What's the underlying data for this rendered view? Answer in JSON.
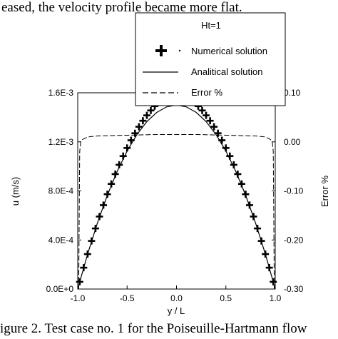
{
  "header_text": "eased, the velocity profile became more flat.",
  "caption_text": "igure 2.  Test case no. 1 for the Poiseuille-Hartmann flow",
  "chart_data": {
    "type": "line",
    "title": "",
    "xlabel": "y / L",
    "ylabel": "u (m/s)",
    "y2label": "Error %",
    "xlim": [
      -1.0,
      1.0
    ],
    "ylim": [
      0.0,
      0.0016
    ],
    "y2lim": [
      -0.3,
      0.1
    ],
    "x_ticks": [
      -1.0,
      -0.5,
      0.0,
      0.5,
      1.0
    ],
    "x_tick_labels": [
      "-1.0",
      "-0.5",
      "0.0",
      "0.5",
      "1.0"
    ],
    "y_ticks": [
      0.0,
      0.0004,
      0.0008,
      0.0012,
      0.0016
    ],
    "y_tick_labels": [
      "0.0E+0",
      "4.0E-4",
      "8.0E-4",
      "1.2E-3",
      "1.6E-3"
    ],
    "y2_ticks": [
      -0.3,
      -0.2,
      -0.1,
      0.0,
      0.1
    ],
    "y2_tick_labels": [
      "-0.30",
      "-0.20",
      "-0.10",
      "0.00",
      "0.10"
    ],
    "grid": false,
    "legend": {
      "placement": "top-center",
      "title": "Ht=1",
      "entries": [
        "Numerical solution",
        "Analitical solution",
        "Error %"
      ]
    },
    "series": [
      {
        "name": "Numerical solution",
        "marker": "plus",
        "color": "#000000",
        "x": [
          -0.98,
          -0.94,
          -0.9,
          -0.86,
          -0.82,
          -0.78,
          -0.74,
          -0.7,
          -0.66,
          -0.62,
          -0.58,
          -0.54,
          -0.5,
          -0.46,
          -0.42,
          -0.38,
          -0.34,
          -0.3,
          -0.26,
          -0.22,
          -0.18,
          -0.14,
          -0.1,
          -0.06,
          -0.02,
          0.02,
          0.06,
          0.1,
          0.14,
          0.18,
          0.22,
          0.26,
          0.3,
          0.34,
          0.38,
          0.42,
          0.46,
          0.5,
          0.54,
          0.58,
          0.62,
          0.66,
          0.7,
          0.74,
          0.78,
          0.82,
          0.86,
          0.9,
          0.94,
          0.98
        ],
        "values": [
          5.9e-05,
          0.000174,
          0.000285,
          0.000392,
          0.000494,
          0.000591,
          0.000684,
          0.000773,
          0.000857,
          0.000937,
          0.001013,
          0.001084,
          0.00115,
          0.001213,
          0.00127,
          0.001323,
          0.001372,
          0.001416,
          0.001456,
          0.001491,
          0.001521,
          0.001547,
          0.001569,
          0.001586,
          0.001598,
          0.001598,
          0.001586,
          0.001569,
          0.001547,
          0.001521,
          0.001491,
          0.001456,
          0.001416,
          0.001372,
          0.001323,
          0.00127,
          0.001213,
          0.00115,
          0.001084,
          0.001013,
          0.000937,
          0.000857,
          0.000773,
          0.000684,
          0.000591,
          0.000494,
          0.000392,
          0.000285,
          0.000174,
          5.9e-05
        ]
      },
      {
        "name": "Analitical solution",
        "style": "solid",
        "color": "#000000",
        "x": [
          -1.0,
          -0.9,
          -0.8,
          -0.7,
          -0.6,
          -0.5,
          -0.4,
          -0.3,
          -0.2,
          -0.1,
          0.0,
          0.1,
          0.2,
          0.3,
          0.4,
          0.5,
          0.6,
          0.7,
          0.8,
          0.9,
          1.0
        ],
        "values": [
          0.0,
          0.000285,
          0.00054,
          0.000765,
          0.00096,
          0.001125,
          0.00126,
          0.001365,
          0.00144,
          0.001485,
          0.0015,
          0.001485,
          0.00144,
          0.001365,
          0.00126,
          0.001125,
          0.00096,
          0.000765,
          0.00054,
          0.000285,
          0.0
        ]
      },
      {
        "name": "Error %",
        "style": "dashed",
        "color": "#000000",
        "axis": "right",
        "x": [
          -0.99,
          -0.985,
          -0.98,
          -0.97,
          -0.95,
          -0.9,
          -0.8,
          -0.6,
          -0.4,
          -0.2,
          0.0,
          0.2,
          0.4,
          0.6,
          0.8,
          0.9,
          0.95,
          0.97,
          0.98,
          0.985,
          0.99
        ],
        "values": [
          -0.3,
          -0.15,
          -0.02,
          0.0,
          0.005,
          0.01,
          0.012,
          0.013,
          0.014,
          0.015,
          0.015,
          0.015,
          0.014,
          0.013,
          0.012,
          0.01,
          0.005,
          0.0,
          -0.02,
          -0.15,
          -0.3
        ]
      }
    ]
  }
}
